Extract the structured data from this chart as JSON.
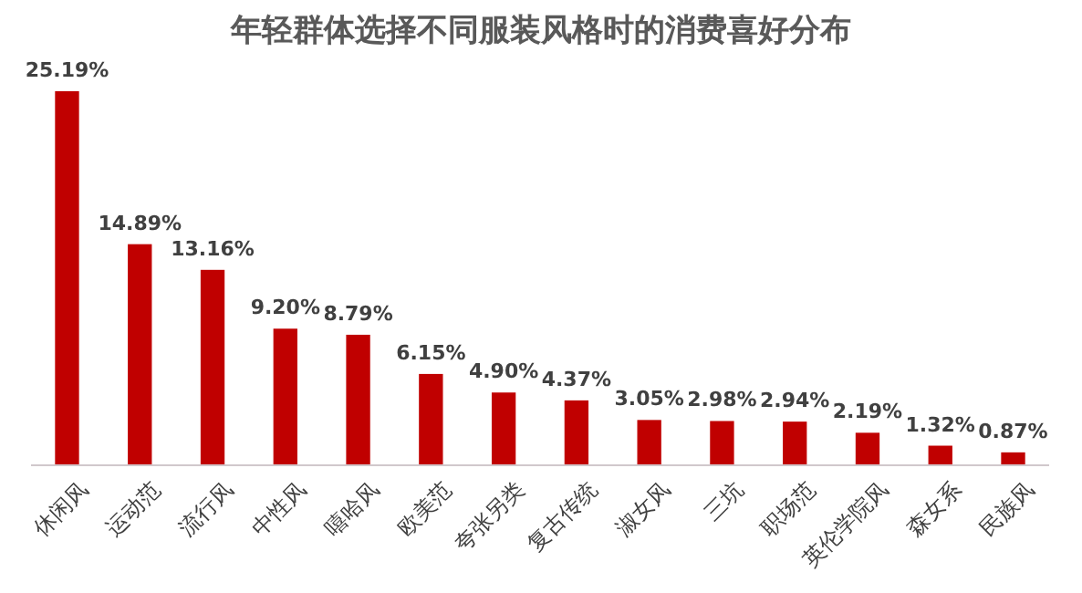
{
  "chart_data": {
    "type": "bar",
    "title": "年轻群体选择不同服装风格时的消费喜好分布",
    "categories": [
      "休闲风",
      "运动范",
      "流行风",
      "中性风",
      "嘻哈风",
      "欧美范",
      "夸张另类",
      "复古传统",
      "淑女风",
      "三坑",
      "职场范",
      "英伦学院风",
      "森女系",
      "民族风"
    ],
    "values": [
      25.19,
      14.89,
      13.16,
      9.2,
      8.79,
      6.15,
      4.9,
      4.37,
      3.05,
      2.98,
      2.94,
      2.19,
      1.32,
      0.87
    ],
    "value_labels": [
      "25.19%",
      "14.89%",
      "13.16%",
      "9.20%",
      "8.79%",
      "6.15%",
      "4.90%",
      "4.37%",
      "3.05%",
      "2.98%",
      "2.94%",
      "2.19%",
      "1.32%",
      "0.87%"
    ],
    "color": "#c00000"
  }
}
